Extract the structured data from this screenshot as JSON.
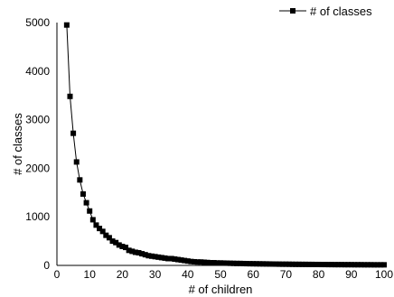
{
  "chart_data": {
    "type": "line",
    "title": "",
    "xlabel": "# of children",
    "ylabel": "# of classes",
    "xlim": [
      0,
      100
    ],
    "ylim": [
      0,
      5000
    ],
    "xticks": [
      0,
      10,
      20,
      30,
      40,
      50,
      60,
      70,
      80,
      90,
      100
    ],
    "yticks": [
      0,
      1000,
      2000,
      3000,
      4000,
      5000
    ],
    "grid": false,
    "legend": {
      "position": "top-right",
      "entries": [
        "# of classes"
      ]
    },
    "series": [
      {
        "name": "# of classes",
        "marker": "square",
        "color": "#000000",
        "x": [
          3,
          4,
          5,
          6,
          7,
          8,
          9,
          10,
          11,
          12,
          13,
          14,
          15,
          16,
          17,
          18,
          19,
          20,
          21,
          22,
          23,
          24,
          25,
          26,
          27,
          28,
          29,
          30,
          31,
          32,
          33,
          34,
          35,
          36,
          37,
          38,
          39,
          40,
          41,
          42,
          43,
          44,
          45,
          46,
          47,
          48,
          49,
          50,
          51,
          52,
          53,
          54,
          55,
          56,
          57,
          58,
          59,
          60,
          61,
          62,
          63,
          64,
          65,
          66,
          67,
          68,
          69,
          70,
          71,
          72,
          73,
          74,
          75,
          76,
          77,
          78,
          79,
          80,
          81,
          82,
          83,
          84,
          85,
          86,
          87,
          88,
          89,
          90,
          91,
          92,
          93,
          94,
          95,
          96,
          97,
          98,
          99,
          100
        ],
        "y": [
          4950,
          3480,
          2720,
          2130,
          1760,
          1470,
          1290,
          1120,
          940,
          830,
          760,
          700,
          620,
          570,
          500,
          470,
          420,
          390,
          370,
          310,
          290,
          270,
          260,
          240,
          220,
          200,
          190,
          180,
          170,
          160,
          150,
          140,
          140,
          130,
          120,
          110,
          100,
          90,
          80,
          75,
          70,
          70,
          65,
          60,
          55,
          55,
          50,
          50,
          48,
          46,
          44,
          42,
          40,
          40,
          38,
          36,
          35,
          34,
          33,
          32,
          31,
          30,
          29,
          28,
          27,
          26,
          25,
          25,
          24,
          23,
          22,
          22,
          21,
          21,
          20,
          20,
          19,
          19,
          18,
          18,
          17,
          17,
          16,
          16,
          16,
          15,
          15,
          15,
          14,
          14,
          14,
          13,
          13,
          13,
          12,
          12,
          12,
          12
        ]
      }
    ]
  }
}
